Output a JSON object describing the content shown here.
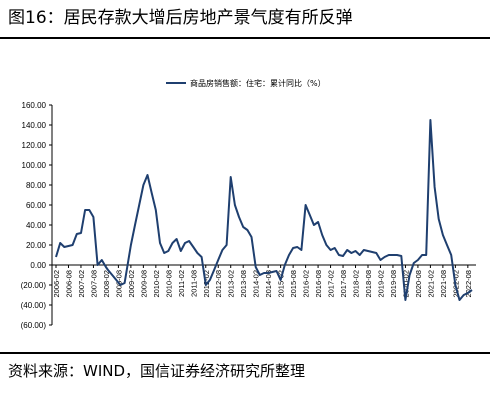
{
  "header": {
    "title": "图16：居民存款大增后房地产景气度有所反弹"
  },
  "footer": {
    "source": "资料来源：WIND，国信证券经济研究所整理"
  },
  "colors": {
    "line": "#1f3f6f",
    "axis": "#000000"
  },
  "chart_data": {
    "type": "line",
    "title": "",
    "xlabel": "",
    "ylabel": "",
    "ylim": [
      -60,
      160
    ],
    "yticks": [
      "160.00",
      "140.00",
      "120.00",
      "100.00",
      "80.00",
      "60.00",
      "40.00",
      "20.00",
      "0.00",
      "(20.00)",
      "(40.00)",
      "(60.00)"
    ],
    "x_ticks": [
      "2006-02",
      "2006-08",
      "2007-02",
      "2007-08",
      "2008-02",
      "2008-08",
      "2009-02",
      "2009-08",
      "2010-02",
      "2010-08",
      "2011-02",
      "2011-08",
      "2012-02",
      "2012-08",
      "2013-02",
      "2013-08",
      "2014-02",
      "2014-08",
      "2015-02",
      "2015-08",
      "2016-02",
      "2016-08",
      "2017-02",
      "2017-08",
      "2018-02",
      "2018-08",
      "2019-02",
      "2019-08",
      "2020-02",
      "2020-08",
      "2021-02",
      "2021-08",
      "2022-02",
      "2022-08"
    ],
    "legend": {
      "position": "top-center"
    },
    "grid": false,
    "series": [
      {
        "name": "商品房销售额：住宅：累计同比（%）",
        "x": [
          "2006-02",
          "2006-04",
          "2006-06",
          "2006-08",
          "2006-10",
          "2006-12",
          "2007-02",
          "2007-04",
          "2007-06",
          "2007-08",
          "2007-10",
          "2007-12",
          "2008-02",
          "2008-03",
          "2008-05",
          "2008-07",
          "2008-09",
          "2008-11",
          "2009-02",
          "2009-04",
          "2009-06",
          "2009-08",
          "2009-10",
          "2009-12",
          "2010-02",
          "2010-04",
          "2010-06",
          "2010-08",
          "2010-10",
          "2010-12",
          "2011-02",
          "2011-04",
          "2011-06",
          "2011-08",
          "2011-10",
          "2011-12",
          "2012-02",
          "2012-04",
          "2012-06",
          "2012-08",
          "2012-10",
          "2012-12",
          "2013-02",
          "2013-04",
          "2013-06",
          "2013-08",
          "2013-10",
          "2013-12",
          "2014-02",
          "2014-04",
          "2014-06",
          "2014-08",
          "2014-10",
          "2014-12",
          "2015-02",
          "2015-04",
          "2015-06",
          "2015-08",
          "2015-10",
          "2015-12",
          "2016-02",
          "2016-04",
          "2016-06",
          "2016-08",
          "2016-10",
          "2016-12",
          "2017-02",
          "2017-04",
          "2017-06",
          "2017-08",
          "2017-10",
          "2017-12",
          "2018-02",
          "2018-04",
          "2018-06",
          "2018-08",
          "2018-10",
          "2018-12",
          "2019-02",
          "2019-04",
          "2019-06",
          "2019-08",
          "2019-10",
          "2019-12",
          "2020-02",
          "2020-04",
          "2020-06",
          "2020-08",
          "2020-10",
          "2020-12",
          "2021-02",
          "2021-04",
          "2021-06",
          "2021-08",
          "2021-10",
          "2021-12",
          "2022-02",
          "2022-04",
          "2022-06",
          "2022-08",
          "2022-10"
        ],
        "y": [
          8,
          22,
          18,
          19,
          20,
          31,
          32,
          55,
          55,
          48,
          0,
          5,
          -2,
          -5,
          -10,
          -15,
          -20,
          -18,
          20,
          40,
          60,
          80,
          90,
          72,
          55,
          22,
          12,
          14,
          22,
          26,
          14,
          22,
          24,
          18,
          12,
          8,
          -20,
          -15,
          -5,
          5,
          15,
          20,
          88,
          60,
          48,
          38,
          35,
          28,
          -2,
          -10,
          -8,
          -8,
          -7,
          -6,
          -15,
          0,
          10,
          17,
          18,
          15,
          60,
          50,
          40,
          43,
          30,
          20,
          15,
          17,
          10,
          9,
          15,
          12,
          14,
          10,
          15,
          14,
          13,
          12,
          5,
          8,
          10,
          10,
          10,
          9,
          -35,
          -10,
          2,
          5,
          10,
          10,
          145,
          78,
          46,
          30,
          20,
          10,
          -20,
          -35,
          -30,
          -28,
          -25
        ]
      }
    ]
  }
}
